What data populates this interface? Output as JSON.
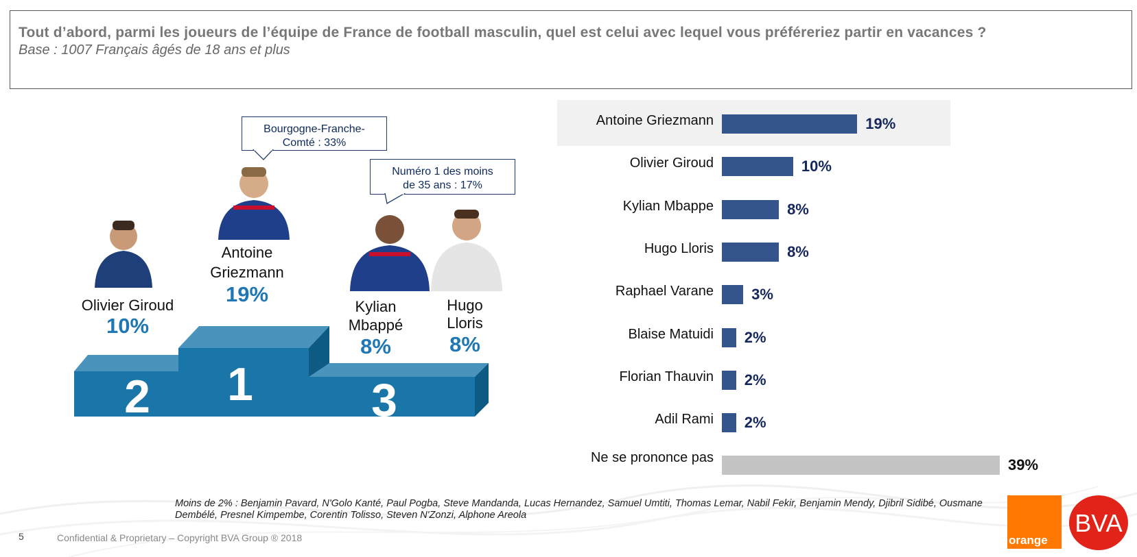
{
  "header": {
    "question": "Tout d’abord, parmi les joueurs de l’équipe de France de football masculin, quel est celui avec lequel vous préféreriez partir en vacances ?",
    "base": "Base : 1007 Français âgés de 18 ans et plus"
  },
  "podium": {
    "first": {
      "rank": "1",
      "name_line1": "Antoine",
      "name_line2": "Griezmann",
      "pct": "19%"
    },
    "second": {
      "rank": "2",
      "name_line1": "Olivier Giroud",
      "pct": "10%"
    },
    "third": {
      "rank": "3"
    },
    "third_a": {
      "name_line1": "Kylian",
      "name_line2": "Mbappé",
      "pct": "8%"
    },
    "third_b": {
      "name_line1": "Hugo",
      "name_line2": "Lloris",
      "pct": "8%"
    },
    "callout_griezmann": {
      "line1": "Bourgogne-Franche-",
      "line2": "Comté : 33%"
    },
    "callout_mbappe": {
      "line1": "Numéro 1 des moins",
      "line2": "de 35 ans : 17%"
    }
  },
  "chart_data": {
    "type": "bar",
    "orientation": "horizontal",
    "categories": [
      "Antoine Griezmann",
      "Olivier Giroud",
      "Kylian Mbappe",
      "Hugo Lloris",
      "Raphael Varane",
      "Blaise Matuidi",
      "Florian Thauvin",
      "Adil Rami",
      "Ne se prononce pas"
    ],
    "values": [
      19,
      10,
      8,
      8,
      3,
      2,
      2,
      2,
      39
    ],
    "labels": [
      "19%",
      "10%",
      "8%",
      "8%",
      "3%",
      "2%",
      "2%",
      "2%",
      "39%"
    ],
    "colors": [
      "#34558b",
      "#34558b",
      "#34558b",
      "#34558b",
      "#34558b",
      "#34558b",
      "#34558b",
      "#34558b",
      "#c4c4c4"
    ],
    "highlight_category": "Antoine Griezmann",
    "xlim": [
      0,
      39
    ]
  },
  "footnote": "Moins de 2% : Benjamin Pavard, N'Golo Kanté, Paul Pogba, Steve Mandanda, Lucas Hernandez, Samuel Umtiti, Thomas Lemar, Nabil Fekir, Benjamin Mendy, Djibril Sidibé, Ousmane Dembélé, Presnel Kimpembe, Corentin Tolisso, Steven N'Zonzi, Alphone Areola",
  "footer": {
    "page_number": "5",
    "confidential": "Confidential & Proprietary – Copyright BVA Group ®  2018"
  },
  "logos": {
    "orange": "orange",
    "bva": "BVA"
  },
  "colors": {
    "podium_front": "#1a76a8",
    "podium_top": "#4a93bd",
    "podium_side": "#0d5a85",
    "pct_blue": "#1f77b4"
  }
}
